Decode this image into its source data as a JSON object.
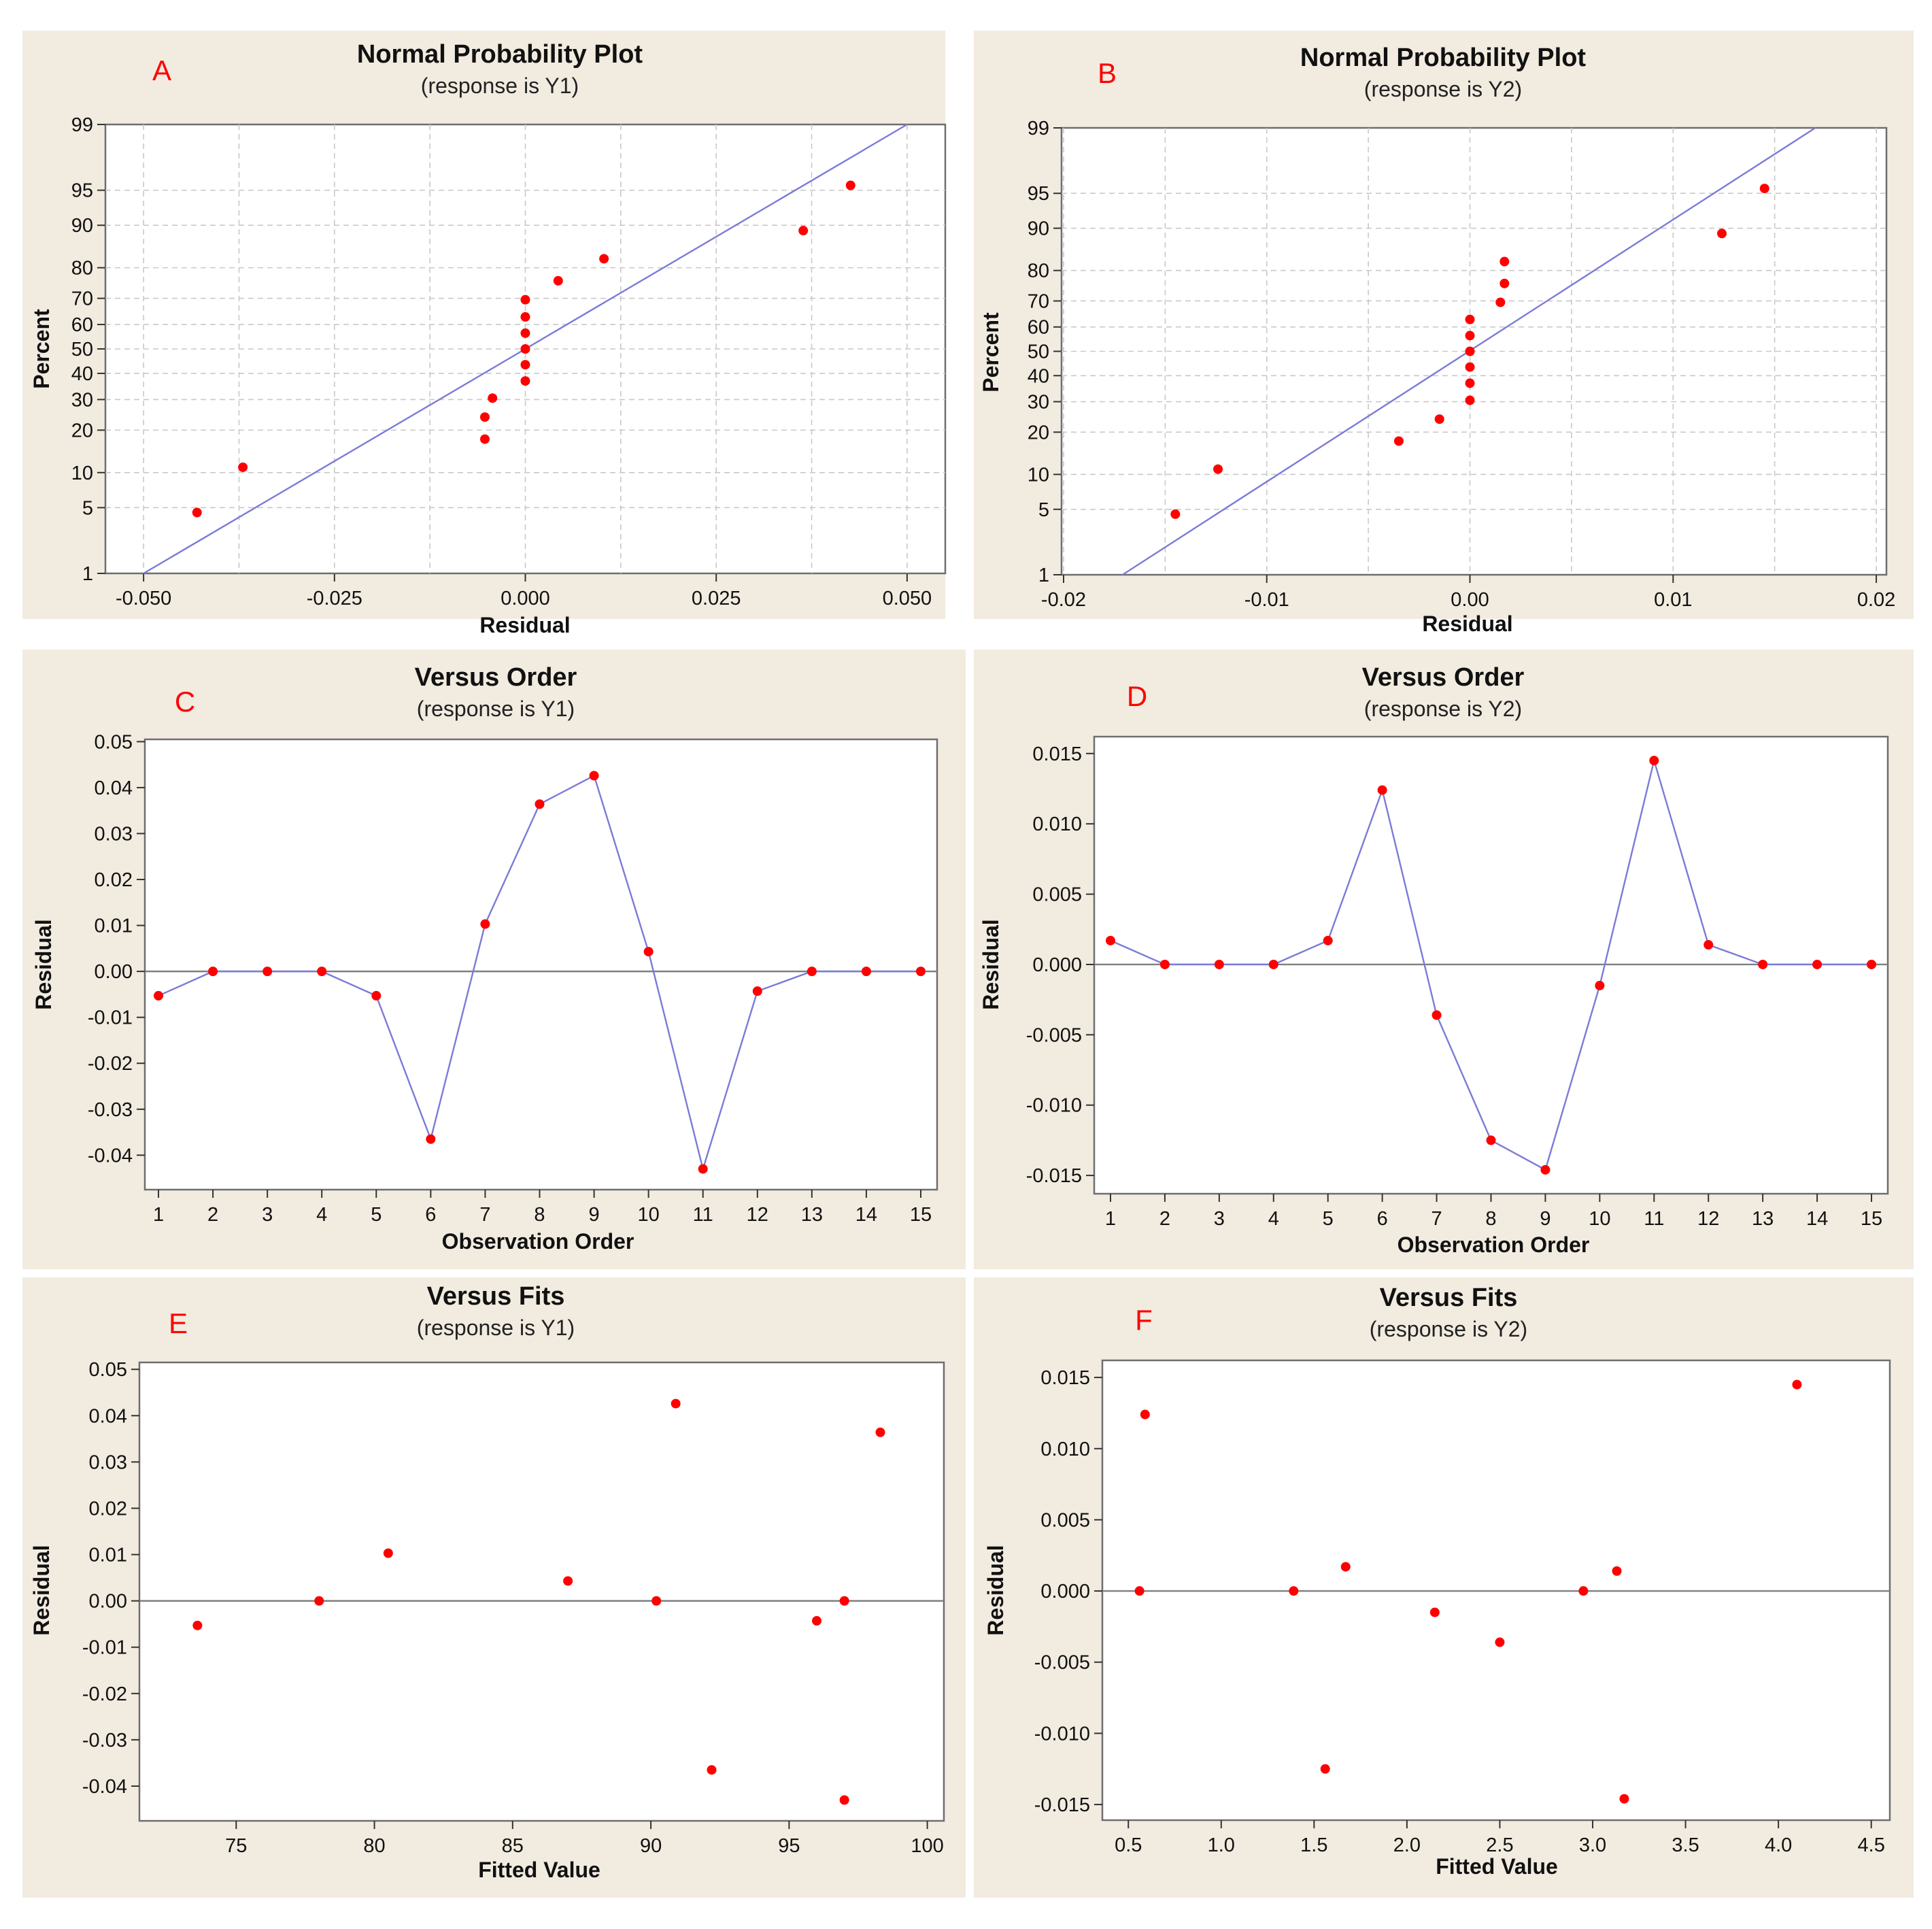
{
  "chart_data": [
    {
      "id": "A",
      "type": "scatter",
      "variant": "normal-probability",
      "letter": "A",
      "title": "Normal Probability Plot",
      "subtitle": "(response is Y1)",
      "xlabel": "Residual",
      "ylabel": "Percent",
      "xlim": [
        -0.055,
        0.055
      ],
      "xticks": [
        -0.05,
        -0.025,
        0,
        0.025,
        0.05
      ],
      "xtick_labels": [
        "-0.050",
        "-0.025",
        "0.000",
        "0.025",
        "0.050"
      ],
      "yticks": [
        1,
        5,
        10,
        20,
        30,
        40,
        50,
        60,
        70,
        80,
        90,
        95,
        99
      ],
      "ytick_labels": [
        "1",
        "5",
        "10",
        "20",
        "30",
        "40",
        "50",
        "60",
        "70",
        "80",
        "90",
        "95",
        "99"
      ],
      "grid": true,
      "fit_line": {
        "x": [
          -0.05,
          0.05
        ],
        "y": [
          1,
          99
        ]
      },
      "points": {
        "x": [
          -0.043,
          -0.037,
          -0.0053,
          -0.0053,
          -0.0043,
          0,
          0,
          0,
          0,
          0,
          0,
          0.0043,
          0.0103,
          0.0364,
          0.0426
        ],
        "y": [
          4.5,
          11,
          17.5,
          24,
          30.5,
          37,
          43.5,
          50,
          56.5,
          63,
          69.5,
          76,
          82.5,
          89,
          95.5
        ]
      }
    },
    {
      "id": "B",
      "type": "scatter",
      "variant": "normal-probability",
      "letter": "B",
      "title": "Normal Probability Plot",
      "subtitle": "(response is Y2)",
      "xlabel": "Residual",
      "ylabel": "Percent",
      "xlim": [
        -0.0201,
        0.0205
      ],
      "xticks": [
        -0.02,
        -0.01,
        0,
        0.01,
        0.02
      ],
      "xtick_labels": [
        "-0.02",
        "-0.01",
        "0.00",
        "0.01",
        "0.02"
      ],
      "yticks": [
        1,
        5,
        10,
        20,
        30,
        40,
        50,
        60,
        70,
        80,
        90,
        95,
        99
      ],
      "ytick_labels": [
        "1",
        "5",
        "10",
        "20",
        "30",
        "40",
        "50",
        "60",
        "70",
        "80",
        "90",
        "95",
        "99"
      ],
      "grid": true,
      "fit_line": {
        "x": [
          -0.0171,
          0.017
        ],
        "y": [
          1,
          99
        ]
      },
      "points": {
        "x": [
          -0.0145,
          -0.0124,
          -0.0035,
          -0.0015,
          0,
          0,
          0,
          0,
          0,
          0,
          0.0015,
          0.0017,
          0.0017,
          0.0124,
          0.0145
        ],
        "y": [
          4.5,
          11,
          17.5,
          24,
          30.5,
          37,
          43.5,
          50,
          56.5,
          63,
          69.5,
          76,
          82.5,
          89,
          95.5
        ]
      }
    },
    {
      "id": "C",
      "type": "line",
      "variant": "versus-order",
      "letter": "C",
      "title": "Versus Order",
      "subtitle": "(response is Y1)",
      "xlabel": "Observation Order",
      "ylabel": "Residual",
      "xlim": [
        0.75,
        15.3
      ],
      "ylim": [
        -0.0475,
        0.0505
      ],
      "xticks": [
        1,
        2,
        3,
        4,
        5,
        6,
        7,
        8,
        9,
        10,
        11,
        12,
        13,
        14,
        15
      ],
      "xtick_labels": [
        "1",
        "2",
        "3",
        "4",
        "5",
        "6",
        "7",
        "8",
        "9",
        "10",
        "11",
        "12",
        "13",
        "14",
        "15"
      ],
      "yticks": [
        0.05,
        0.04,
        0.03,
        0.02,
        0.01,
        0,
        -0.01,
        -0.02,
        -0.03,
        -0.04
      ],
      "ytick_labels": [
        "0.05",
        "0.04",
        "0.03",
        "0.02",
        "0.01",
        "0.00",
        "-0.01",
        "-0.02",
        "-0.03",
        "-0.04"
      ],
      "grid": false,
      "ref_line": 0,
      "points": {
        "x": [
          1,
          2,
          3,
          4,
          5,
          6,
          7,
          8,
          9,
          10,
          11,
          12,
          13,
          14,
          15
        ],
        "y": [
          -0.0053,
          0,
          0,
          0,
          -0.0053,
          -0.0365,
          0.0103,
          0.0364,
          0.0426,
          0.0043,
          -0.043,
          -0.0043,
          0,
          0,
          0
        ]
      }
    },
    {
      "id": "D",
      "type": "line",
      "variant": "versus-order",
      "letter": "D",
      "title": "Versus Order",
      "subtitle": "(response is Y2)",
      "xlabel": "Observation Order",
      "ylabel": "Residual",
      "xlim": [
        0.7,
        15.3
      ],
      "ylim": [
        -0.0163,
        0.0162
      ],
      "xticks": [
        1,
        2,
        3,
        4,
        5,
        6,
        7,
        8,
        9,
        10,
        11,
        12,
        13,
        14,
        15
      ],
      "xtick_labels": [
        "1",
        "2",
        "3",
        "4",
        "5",
        "6",
        "7",
        "8",
        "9",
        "10",
        "11",
        "12",
        "13",
        "14",
        "15"
      ],
      "yticks": [
        0.015,
        0.01,
        0.005,
        0,
        -0.005,
        -0.01,
        -0.015
      ],
      "ytick_labels": [
        "0.015",
        "0.010",
        "0.005",
        "0.000",
        "-0.005",
        "-0.010",
        "-0.015"
      ],
      "grid": false,
      "ref_line": 0,
      "points": {
        "x": [
          1,
          2,
          3,
          4,
          5,
          6,
          7,
          8,
          9,
          10,
          11,
          12,
          13,
          14,
          15
        ],
        "y": [
          0.0017,
          0,
          0,
          0,
          0.0017,
          0.0124,
          -0.0036,
          -0.0125,
          -0.0146,
          -0.0015,
          0.0145,
          0.0014,
          0,
          0,
          0
        ]
      }
    },
    {
      "id": "E",
      "type": "scatter",
      "variant": "versus-fits",
      "letter": "E",
      "title": "Versus Fits",
      "subtitle": "(response is Y1)",
      "xlabel": "Fitted Value",
      "ylabel": "Residual",
      "xlim": [
        71.5,
        100.6
      ],
      "ylim": [
        -0.0475,
        0.0515
      ],
      "xticks": [
        75,
        80,
        85,
        90,
        95,
        100
      ],
      "xtick_labels": [
        "75",
        "80",
        "85",
        "90",
        "95",
        "100"
      ],
      "yticks": [
        0.05,
        0.04,
        0.03,
        0.02,
        0.01,
        0,
        -0.01,
        -0.02,
        -0.03,
        -0.04
      ],
      "ytick_labels": [
        "0.05",
        "0.04",
        "0.03",
        "0.02",
        "0.01",
        "0.00",
        "-0.01",
        "-0.02",
        "-0.03",
        "-0.04"
      ],
      "grid": false,
      "ref_line": 0,
      "points": {
        "x": [
          73.6,
          78,
          80.5,
          87,
          90.2,
          90.9,
          92.2,
          96,
          97,
          97,
          98.3
        ],
        "y": [
          -0.0053,
          0,
          0.0103,
          0.0043,
          0,
          0.0426,
          -0.0365,
          -0.0043,
          0,
          -0.043,
          0.0364
        ]
      }
    },
    {
      "id": "F",
      "type": "scatter",
      "variant": "versus-fits",
      "letter": "F",
      "title": "Versus Fits",
      "subtitle": "(response is Y2)",
      "xlabel": "Fitted Value",
      "ylabel": "Residual",
      "xlim": [
        0.36,
        4.6
      ],
      "ylim": [
        -0.0161,
        0.0162
      ],
      "xticks": [
        0.5,
        1,
        1.5,
        2,
        2.5,
        3,
        3.5,
        4,
        4.5
      ],
      "xtick_labels": [
        "0.5",
        "1.0",
        "1.5",
        "2.0",
        "2.5",
        "3.0",
        "3.5",
        "4.0",
        "4.5"
      ],
      "yticks": [
        0.015,
        0.01,
        0.005,
        0,
        -0.005,
        -0.01,
        -0.015
      ],
      "ytick_labels": [
        "0.015",
        "0.010",
        "0.005",
        "0.000",
        "-0.005",
        "-0.010",
        "-0.015"
      ],
      "grid": false,
      "ref_line": 0,
      "points": {
        "x": [
          0.56,
          0.59,
          1.39,
          1.56,
          1.67,
          2.15,
          2.5,
          2.95,
          3.13,
          3.17,
          4.1
        ],
        "y": [
          0,
          0.0124,
          0,
          -0.0125,
          0.0017,
          -0.0015,
          -0.0036,
          0,
          0.0014,
          -0.0146,
          0.0145
        ]
      }
    }
  ]
}
